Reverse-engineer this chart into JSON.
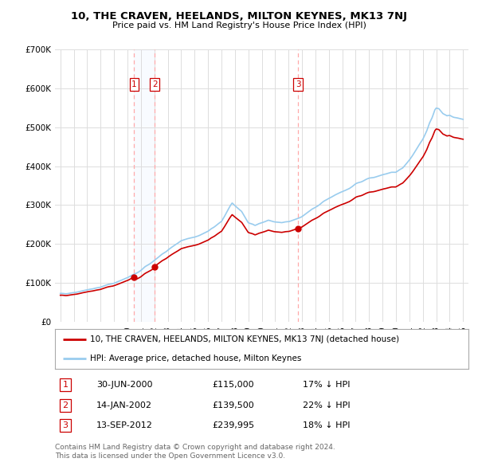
{
  "title": "10, THE CRAVEN, HEELANDS, MILTON KEYNES, MK13 7NJ",
  "subtitle": "Price paid vs. HM Land Registry's House Price Index (HPI)",
  "legend_label_red": "10, THE CRAVEN, HEELANDS, MILTON KEYNES, MK13 7NJ (detached house)",
  "legend_label_blue": "HPI: Average price, detached house, Milton Keynes",
  "transactions": [
    {
      "num": 1,
      "date_str": "30-JUN-2000",
      "year": 2000.5,
      "price": 115000,
      "pct": "17%",
      "dir": "↓"
    },
    {
      "num": 2,
      "date_str": "14-JAN-2002",
      "year": 2002.04,
      "price": 139500,
      "pct": "22%",
      "dir": "↓"
    },
    {
      "num": 3,
      "date_str": "13-SEP-2012",
      "year": 2012.71,
      "price": 239995,
      "pct": "18%",
      "dir": "↓"
    }
  ],
  "footer_line1": "Contains HM Land Registry data © Crown copyright and database right 2024.",
  "footer_line2": "This data is licensed under the Open Government Licence v3.0.",
  "ylim": [
    0,
    700000
  ],
  "xlim_start": 1994.6,
  "xlim_end": 2025.4,
  "yticks": [
    0,
    100000,
    200000,
    300000,
    400000,
    500000,
    600000,
    700000
  ],
  "red_color": "#cc0000",
  "blue_color": "#99ccee",
  "vline_color": "#ffaaaa",
  "shade_color": "#ddeeff",
  "background_color": "#ffffff",
  "grid_color": "#dddddd"
}
